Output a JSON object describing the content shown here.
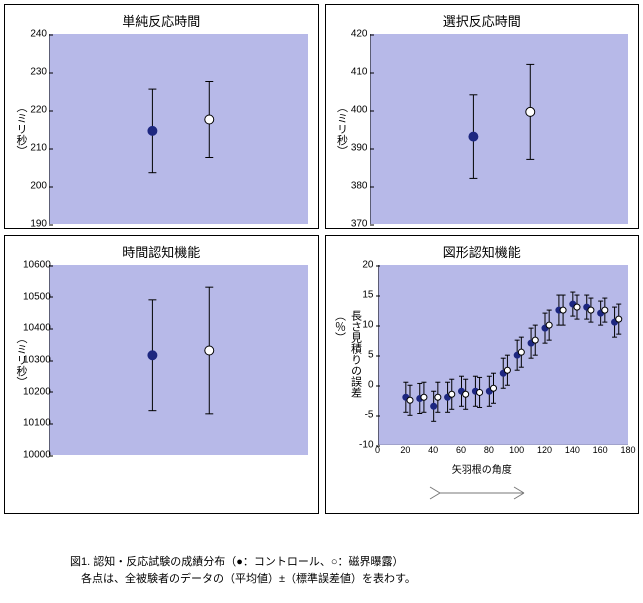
{
  "caption": {
    "line1": "図1. 認知・反応試験の成績分布（●：コントロール、○：磁界曝露）",
    "line2": "　各点は、全被験者のデータの（平均値）±（標準誤差値）を表わす。"
  },
  "panel4_xlabel": "矢羽根の角度",
  "panels": [
    {
      "title": "単純反応時間",
      "ylabel": "（ミリ秒）",
      "ylim": [
        190,
        240
      ],
      "ytick_step": 10,
      "series": [
        {
          "x_frac": 0.4,
          "y": 214.5,
          "err": 11,
          "filled": true
        },
        {
          "x_frac": 0.62,
          "y": 217.5,
          "err": 10,
          "filled": false
        }
      ]
    },
    {
      "title": "選択反応時間",
      "ylabel": "（ミリ秒）",
      "ylim": [
        370,
        420
      ],
      "ytick_step": 10,
      "series": [
        {
          "x_frac": 0.4,
          "y": 393,
          "err": 11,
          "filled": true
        },
        {
          "x_frac": 0.62,
          "y": 399.5,
          "err": 12.5,
          "filled": false
        }
      ]
    },
    {
      "title": "時間認知機能",
      "ylabel": "（ミリ秒）",
      "ylim": [
        10000,
        10600
      ],
      "ytick_step": 100,
      "series": [
        {
          "x_frac": 0.4,
          "y": 10315,
          "err": 175,
          "filled": true
        },
        {
          "x_frac": 0.62,
          "y": 10330,
          "err": 200,
          "filled": false
        }
      ]
    }
  ],
  "panel4": {
    "title": "図形認知機能",
    "ylabel": "長さ見積りの誤差（％）",
    "xlim": [
      0,
      180
    ],
    "ylim": [
      -10,
      20
    ],
    "xtick_step": 20,
    "ytick_step": 5,
    "filled_series": [
      {
        "x": 20,
        "y": -2,
        "e": 2.5
      },
      {
        "x": 30,
        "y": -2.2,
        "e": 2.5
      },
      {
        "x": 40,
        "y": -3.5,
        "e": 2.5
      },
      {
        "x": 50,
        "y": -2,
        "e": 2.5
      },
      {
        "x": 60,
        "y": -1,
        "e": 2.5
      },
      {
        "x": 70,
        "y": -1,
        "e": 2.5
      },
      {
        "x": 80,
        "y": -1,
        "e": 2.5
      },
      {
        "x": 90,
        "y": 2,
        "e": 2.5
      },
      {
        "x": 100,
        "y": 5,
        "e": 2.5
      },
      {
        "x": 110,
        "y": 7,
        "e": 2.5
      },
      {
        "x": 120,
        "y": 9.5,
        "e": 2.5
      },
      {
        "x": 130,
        "y": 12.5,
        "e": 2.5
      },
      {
        "x": 140,
        "y": 13.5,
        "e": 2
      },
      {
        "x": 150,
        "y": 13,
        "e": 2
      },
      {
        "x": 160,
        "y": 12,
        "e": 2
      },
      {
        "x": 170,
        "y": 10.5,
        "e": 2.5
      }
    ],
    "open_series": [
      {
        "x": 23,
        "y": -2.5,
        "e": 2.5
      },
      {
        "x": 33,
        "y": -2,
        "e": 2.5
      },
      {
        "x": 43,
        "y": -2,
        "e": 2.5
      },
      {
        "x": 53,
        "y": -1.5,
        "e": 2.5
      },
      {
        "x": 63,
        "y": -1.5,
        "e": 2.5
      },
      {
        "x": 73,
        "y": -1.2,
        "e": 2.5
      },
      {
        "x": 83,
        "y": -0.5,
        "e": 2.5
      },
      {
        "x": 93,
        "y": 2.5,
        "e": 2.5
      },
      {
        "x": 103,
        "y": 5.5,
        "e": 2.5
      },
      {
        "x": 113,
        "y": 7.5,
        "e": 2.5
      },
      {
        "x": 123,
        "y": 10,
        "e": 2.5
      },
      {
        "x": 133,
        "y": 12.5,
        "e": 2.5
      },
      {
        "x": 143,
        "y": 13,
        "e": 2
      },
      {
        "x": 153,
        "y": 12.5,
        "e": 2
      },
      {
        "x": 163,
        "y": 12.5,
        "e": 2
      },
      {
        "x": 173,
        "y": 11,
        "e": 2.5
      }
    ]
  }
}
